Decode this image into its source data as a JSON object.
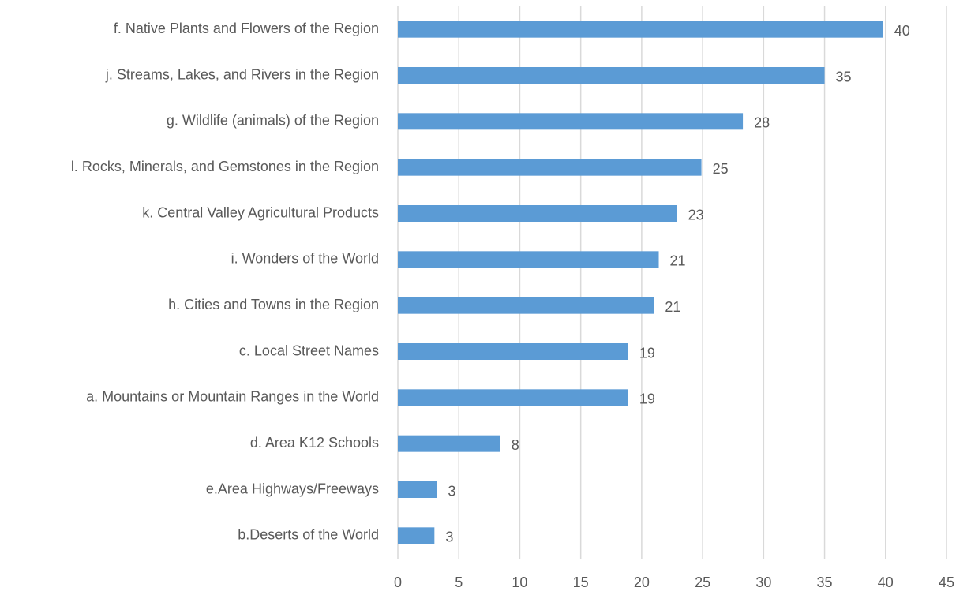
{
  "chart_data": {
    "type": "barh",
    "categories": [
      "f. Native Plants and Flowers of the Region",
      "j. Streams, Lakes, and Rivers in the Region",
      "g. Wildlife (animals) of the Region",
      "l. Rocks, Minerals, and Gemstones in the Region",
      "k. Central Valley Agricultural Products",
      "i. Wonders of the World",
      "h. Cities and Towns in the Region",
      "c. Local Street Names",
      "a. Mountains or Mountain Ranges in the World",
      "d. Area K12 Schools",
      "e.Area Highways/Freeways",
      "b.Deserts of the World"
    ],
    "values": [
      39.8,
      35.0,
      28.3,
      24.9,
      22.9,
      21.4,
      21.0,
      18.9,
      18.9,
      8.4,
      3.2,
      3.0
    ],
    "value_labels": [
      "40",
      "35",
      "28",
      "25",
      "23",
      "21",
      "21",
      "19",
      "19",
      "8",
      "3",
      "3"
    ],
    "color": "#5b9bd5",
    "xlim": [
      0,
      45
    ],
    "xticks": [
      0,
      5,
      10,
      15,
      20,
      25,
      30,
      35,
      40,
      45
    ],
    "grid": true
  }
}
